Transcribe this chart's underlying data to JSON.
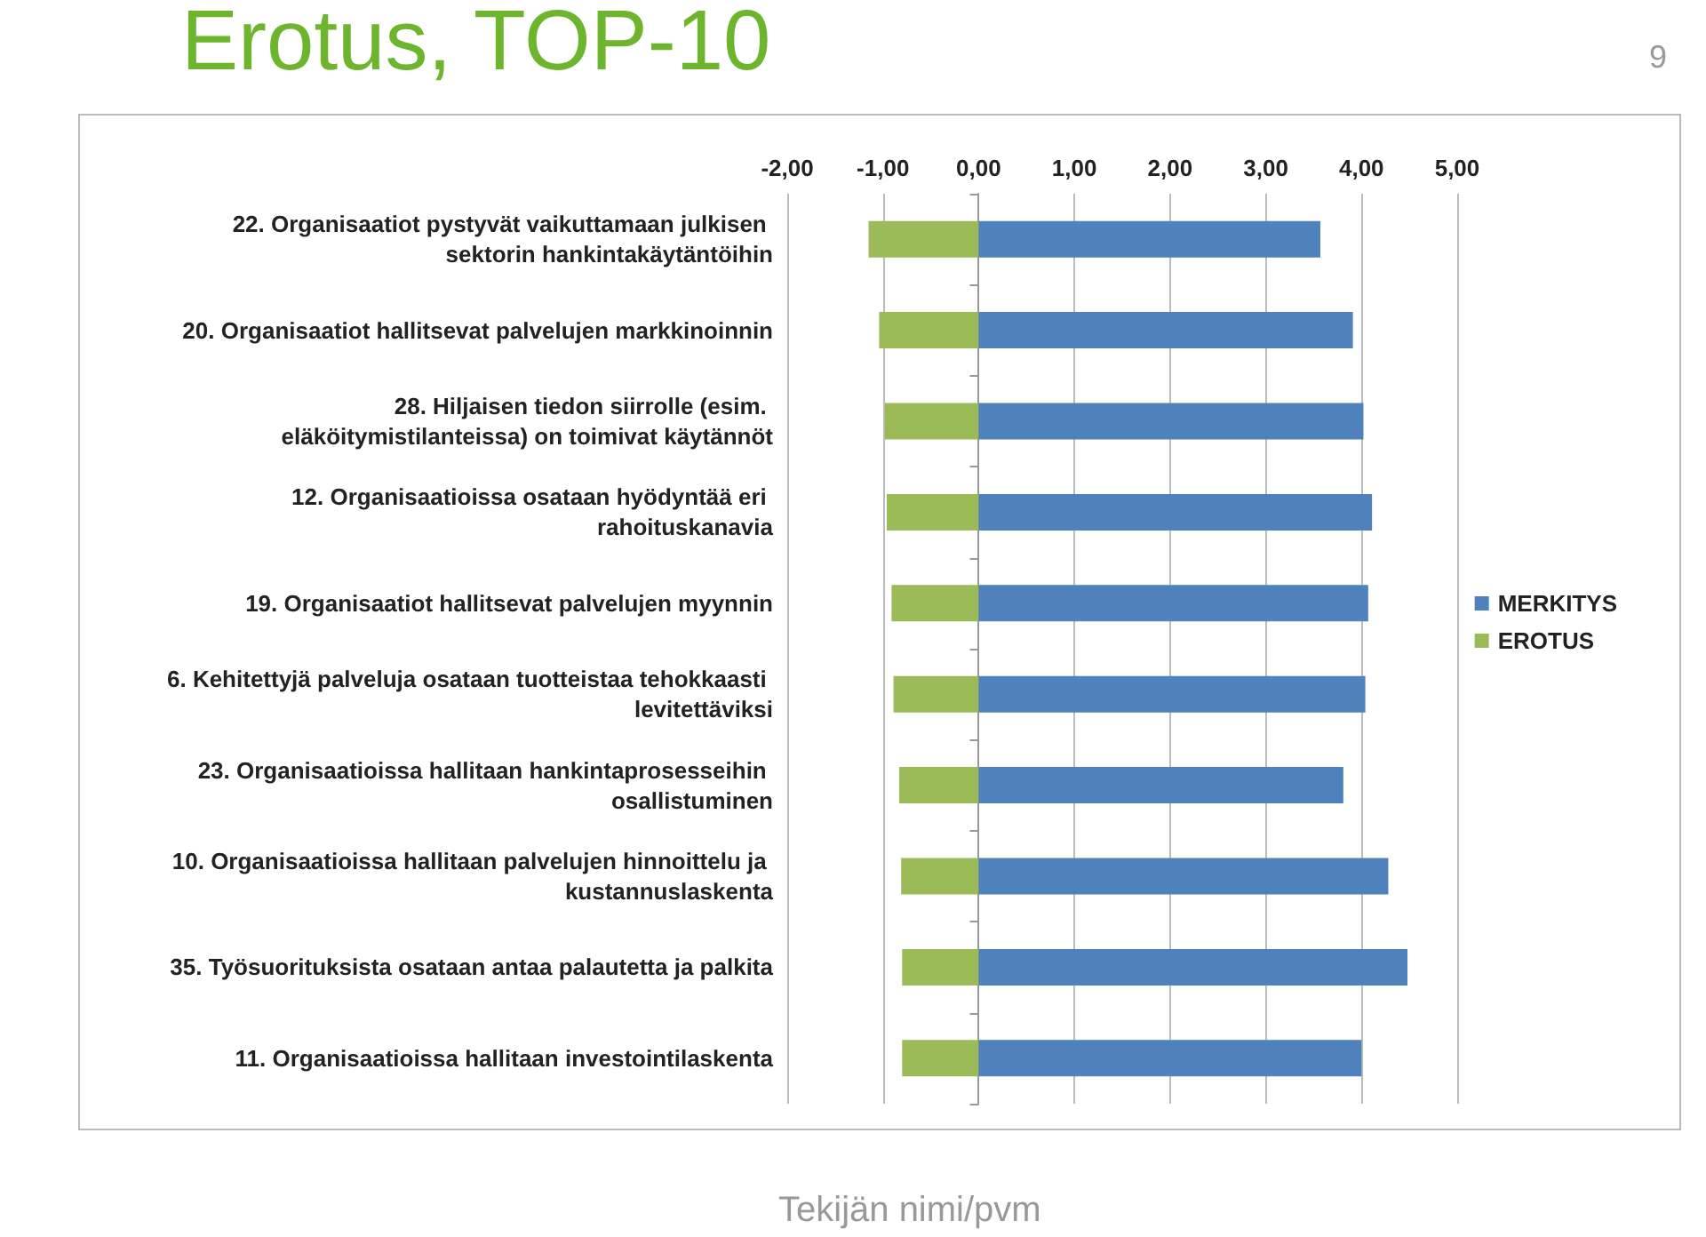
{
  "chart_data": {
    "type": "bar",
    "title": "Erotus, TOP-10",
    "orientation": "horizontal",
    "stacked": true,
    "categories": [
      "22. Organisaatiot pystyvät vaikuttamaan julkisen sektorin hankintakäytäntöihin",
      "20. Organisaatiot hallitsevat palvelujen markkinoinnin",
      "28. Hiljaisen tiedon siirrolle (esim. eläköitymistilanteissa) on toimivat käytännöt",
      "12. Organisaatioissa osataan hyödyntää eri rahoituskanavia",
      "19. Organisaatiot hallitsevat palvelujen myynnin",
      "6. Kehitettyjä palveluja osataan tuotteistaa tehokkaasti levitettäviksi",
      "23. Organisaatioissa hallitaan hankintaprosesseihin osallistuminen",
      "10. Organisaatioissa hallitaan palvelujen hinnoittelu ja kustannuslaskenta",
      "35. Työsuorituksista osataan antaa palautetta ja palkita",
      "11. Organisaatioissa hallitaan investointilaskenta"
    ],
    "series": [
      {
        "name": "EROTUS",
        "color": "#9bbb59",
        "values": [
          -1.15,
          -1.04,
          -0.98,
          -0.96,
          -0.91,
          -0.89,
          -0.83,
          -0.81,
          -0.8,
          -0.8
        ]
      },
      {
        "name": "MERKITYS",
        "color": "#4f81bd",
        "values": [
          3.57,
          3.91,
          4.02,
          4.11,
          4.07,
          4.04,
          3.81,
          4.28,
          4.48,
          4.0
        ]
      }
    ],
    "xlim": [
      -2,
      5
    ],
    "xticks": [
      {
        "value": -2,
        "label": "-2,00"
      },
      {
        "value": -1,
        "label": "-1,00"
      },
      {
        "value": 0,
        "label": "0,00"
      },
      {
        "value": 1,
        "label": "1,00"
      },
      {
        "value": 2,
        "label": "2,00"
      },
      {
        "value": 3,
        "label": "3,00"
      },
      {
        "value": 4,
        "label": "4,00"
      },
      {
        "value": 5,
        "label": "5,00"
      }
    ],
    "grid": "x",
    "legend": "right",
    "annotations": [
      "9",
      "Tekijän nimi/pvm"
    ]
  }
}
